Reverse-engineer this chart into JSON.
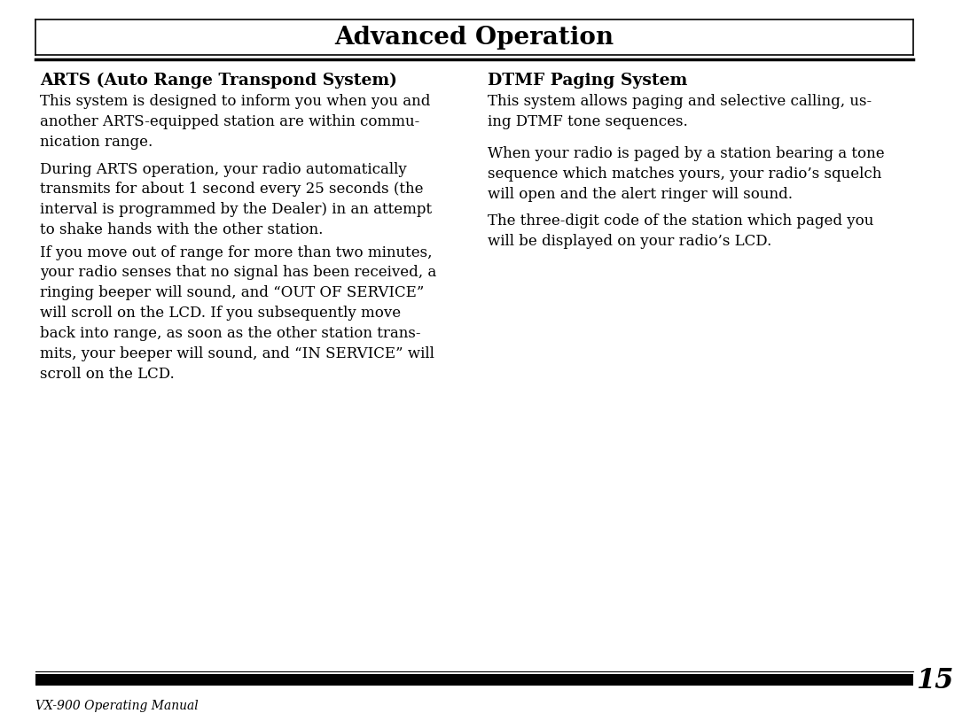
{
  "bg_color": "#ffffff",
  "text_color": "#000000",
  "title_first": "A",
  "title_rest1": "DVANCED ",
  "title_first2": "O",
  "title_rest2": "PERATION",
  "page_number": "15",
  "footer_label": "VX-900 ",
  "footer_label2": "O",
  "footer_label3": "PERATING ",
  "footer_label4": "M",
  "footer_label5": "ANUAL",
  "left_col_heading": "ARTS (Auto Range Transpond System)",
  "left_para1": "This system is designed to inform you when you and\nanother ARTS-equipped station are within commu-\nnication range.",
  "left_para2": "During ARTS operation, your radio automatically\ntransmits for about 1 second every 25 seconds (the\ninterval is programmed by the Dealer) in an attempt\nto shake hands with the other station.",
  "left_para3a": "If you move out of range for more than two minutes,\nyour radio senses that no signal has been received, a\nringing beeper will sound, and “",
  "left_para3b": "OUT OF SERVICE",
  "left_para3c": "”\nwill scroll on the LCD. If you subsequently move\nback into range, as soon as the other station trans-\nmits, your beeper will sound, and “",
  "left_para3d": "IN SERVICE",
  "left_para3e": "” will\nscroll on the LCD.",
  "right_col_heading": "DTMF Paging System",
  "right_para1": "This system allows paging and selective calling, us-\ning DTMF tone sequences.",
  "right_para2": "When your radio is paged by a station bearing a tone\nsequence which matches yours, your radio’s squelch\nwill open and the alert ringer will sound.",
  "right_para3": "The three-digit code of the station which paged you\nwill be displayed on your radio’s LCD."
}
